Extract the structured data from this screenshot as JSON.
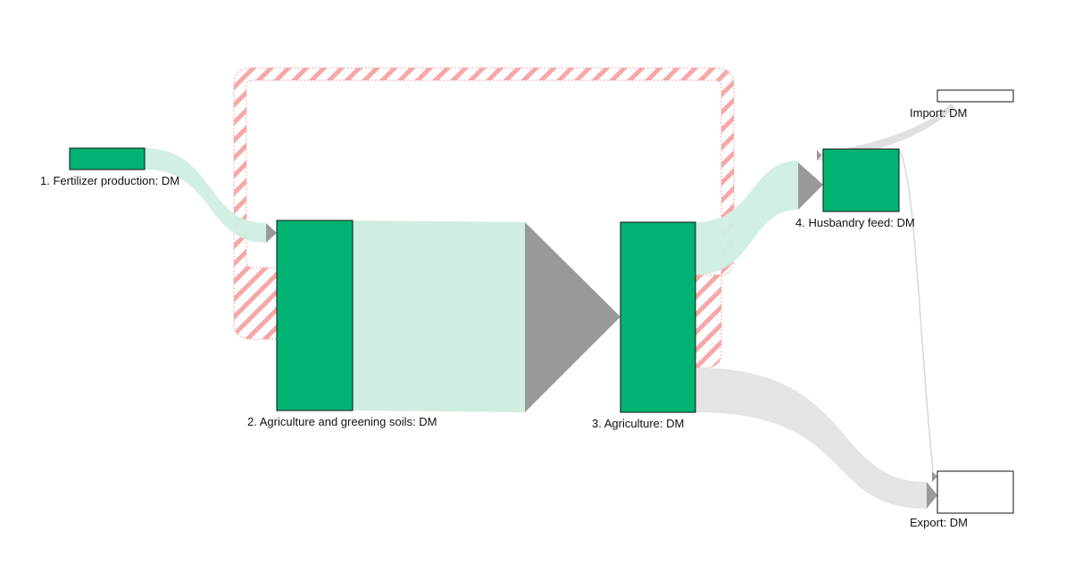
{
  "diagram": {
    "type": "sankey",
    "colors": {
      "node_fill": "#00b373",
      "node_empty_fill": "#ffffff",
      "node_stroke": "#111111",
      "flow_green": "#cfeee0",
      "flow_gray": "#e3e3e3",
      "flow_red": "#f7a3a3",
      "arrow": "#999999"
    },
    "nodes": [
      {
        "id": "fertilizer",
        "label": "1. Fertilizer production: DM"
      },
      {
        "id": "agri_soils",
        "label": "2. Agriculture and greening soils: DM"
      },
      {
        "id": "agriculture",
        "label": "3. Agriculture: DM"
      },
      {
        "id": "husbandry",
        "label": "4. Husbandry feed: DM"
      },
      {
        "id": "import",
        "label": "Import: DM"
      },
      {
        "id": "export",
        "label": "Export: DM"
      }
    ],
    "flows": [
      {
        "from": "fertilizer",
        "to": "agri_soils",
        "style": "green"
      },
      {
        "from": "agri_soils",
        "to": "agriculture",
        "style": "green"
      },
      {
        "from": "agriculture",
        "to": "husbandry",
        "style": "green"
      },
      {
        "from": "agriculture",
        "to": "agri_soils",
        "style": "red-hatched"
      },
      {
        "from": "agriculture",
        "to": "export",
        "style": "gray"
      },
      {
        "from": "husbandry",
        "to": "import",
        "style": "gray"
      },
      {
        "from": "husbandry",
        "to": "export",
        "style": "gray"
      }
    ]
  }
}
